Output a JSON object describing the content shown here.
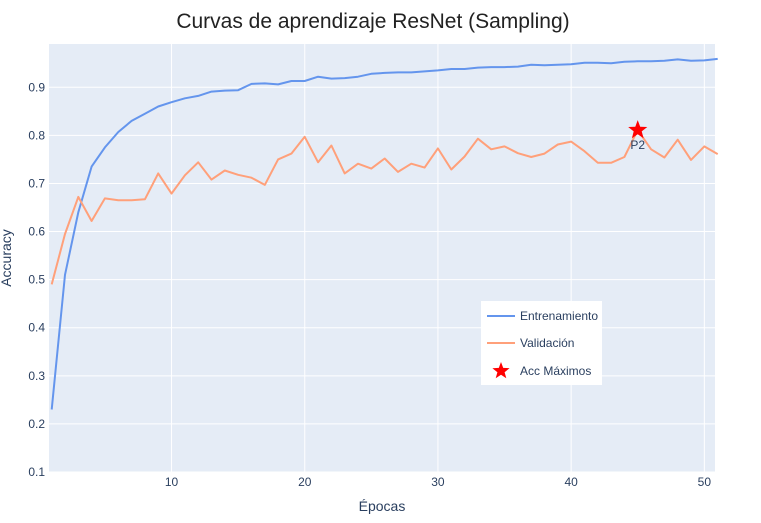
{
  "chart_data": {
    "type": "line",
    "title": "Curvas de aprendizaje ResNet (Sampling)",
    "xlabel": "Épocas",
    "ylabel": "Accuracy",
    "xlim": [
      0.8,
      50.8
    ],
    "ylim": [
      0.1,
      0.99
    ],
    "xticks": [
      10,
      20,
      30,
      40,
      50
    ],
    "yticks": [
      0.1,
      0.2,
      0.3,
      0.4,
      0.5,
      0.6,
      0.7,
      0.8,
      0.9
    ],
    "grid": true,
    "legend_position": "bottom-right",
    "x": [
      1,
      2,
      3,
      4,
      5,
      6,
      7,
      8,
      9,
      10,
      11,
      12,
      13,
      14,
      15,
      16,
      17,
      18,
      19,
      20,
      21,
      22,
      23,
      24,
      25,
      26,
      27,
      28,
      29,
      30,
      31,
      32,
      33,
      34,
      35,
      36,
      37,
      38,
      39,
      40,
      41,
      42,
      43,
      44,
      45,
      46,
      47,
      48,
      49,
      50,
      51
    ],
    "series": [
      {
        "name": "Entrenamiento",
        "color": "#6495ed",
        "values": [
          0.23,
          0.51,
          0.64,
          0.735,
          0.775,
          0.807,
          0.83,
          0.845,
          0.86,
          0.869,
          0.877,
          0.882,
          0.891,
          0.893,
          0.894,
          0.907,
          0.908,
          0.906,
          0.913,
          0.913,
          0.922,
          0.918,
          0.919,
          0.922,
          0.928,
          0.93,
          0.931,
          0.931,
          0.933,
          0.935,
          0.938,
          0.938,
          0.941,
          0.942,
          0.942,
          0.943,
          0.947,
          0.946,
          0.947,
          0.948,
          0.951,
          0.951,
          0.95,
          0.953,
          0.954,
          0.954,
          0.955,
          0.958,
          0.955,
          0.956,
          0.959
        ]
      },
      {
        "name": "Validación",
        "color": "#ffa07a",
        "values": [
          0.49,
          0.595,
          0.672,
          0.622,
          0.669,
          0.665,
          0.665,
          0.667,
          0.721,
          0.679,
          0.717,
          0.744,
          0.708,
          0.727,
          0.718,
          0.712,
          0.697,
          0.75,
          0.762,
          0.797,
          0.744,
          0.779,
          0.721,
          0.741,
          0.731,
          0.752,
          0.724,
          0.741,
          0.733,
          0.773,
          0.729,
          0.756,
          0.793,
          0.771,
          0.777,
          0.763,
          0.755,
          0.762,
          0.781,
          0.787,
          0.767,
          0.743,
          0.743,
          0.755,
          0.811,
          0.771,
          0.754,
          0.791,
          0.749,
          0.777,
          0.761
        ]
      }
    ],
    "marker": {
      "name": "Acc Máximos",
      "color": "#ff0000",
      "x": 45,
      "y": 0.811,
      "label": "P2"
    }
  }
}
